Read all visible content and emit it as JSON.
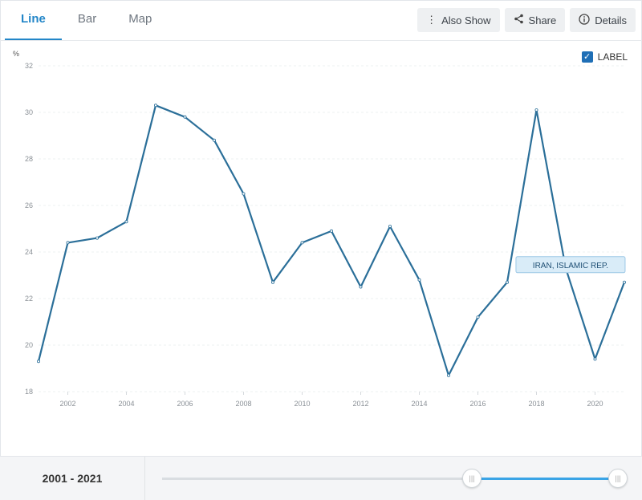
{
  "tabs": [
    "Line",
    "Bar",
    "Map"
  ],
  "toolbar": {
    "also_show": "Also Show",
    "share": "Share",
    "details": "Details"
  },
  "label_toggle": "LABEL",
  "series_label": "IRAN, ISLAMIC REP.",
  "range_text": "2001 - 2021",
  "colors": {
    "accent": "#2386c8",
    "line": "#2b6f99",
    "slider": "#3aa4e6"
  },
  "chart_data": {
    "type": "line",
    "ylabel": "%",
    "ylim": [
      18,
      32
    ],
    "yticks": [
      18,
      20,
      22,
      24,
      26,
      28,
      30,
      32
    ],
    "xlim": [
      2001,
      2021
    ],
    "xticks": [
      2002,
      2004,
      2006,
      2008,
      2010,
      2012,
      2014,
      2016,
      2018,
      2020
    ],
    "grid": true,
    "series": [
      {
        "name": "IRAN, ISLAMIC REP.",
        "x": [
          2001,
          2002,
          2003,
          2004,
          2005,
          2006,
          2007,
          2008,
          2009,
          2010,
          2011,
          2012,
          2013,
          2014,
          2015,
          2016,
          2017,
          2018,
          2019,
          2020,
          2021
        ],
        "values": [
          19.3,
          24.4,
          24.6,
          25.3,
          30.3,
          29.8,
          28.8,
          26.5,
          22.7,
          24.4,
          24.9,
          22.5,
          25.1,
          22.8,
          18.7,
          21.2,
          22.7,
          30.1,
          23.3,
          19.4,
          22.7
        ]
      }
    ]
  }
}
